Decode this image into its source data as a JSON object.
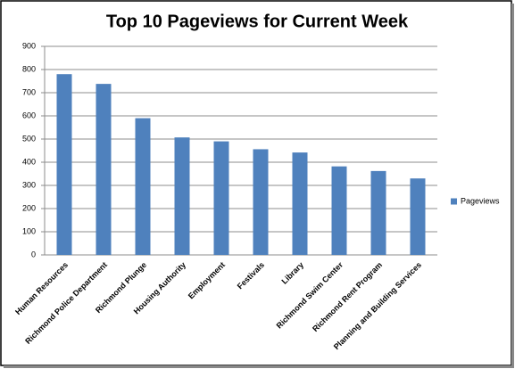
{
  "chart_data": {
    "type": "bar",
    "title": "Top 10 Pageviews for Current Week",
    "categories": [
      "Human Resources",
      "Richmond Police Department",
      "Richmond Plunge",
      "Housing Authority",
      "Employment",
      "Festivals",
      "Library",
      "Richmond Swim Center",
      "Richmond Rent Program",
      "Planning and Building Services"
    ],
    "series": [
      {
        "name": "Pageviews",
        "color": "#4f81bd",
        "values": [
          780,
          738,
          590,
          507,
          490,
          456,
          442,
          382,
          362,
          330
        ]
      }
    ],
    "ylim": [
      0,
      900
    ],
    "yticks": [
      0,
      100,
      200,
      300,
      400,
      500,
      600,
      700,
      800,
      900
    ],
    "grid": true,
    "legend": "right"
  }
}
